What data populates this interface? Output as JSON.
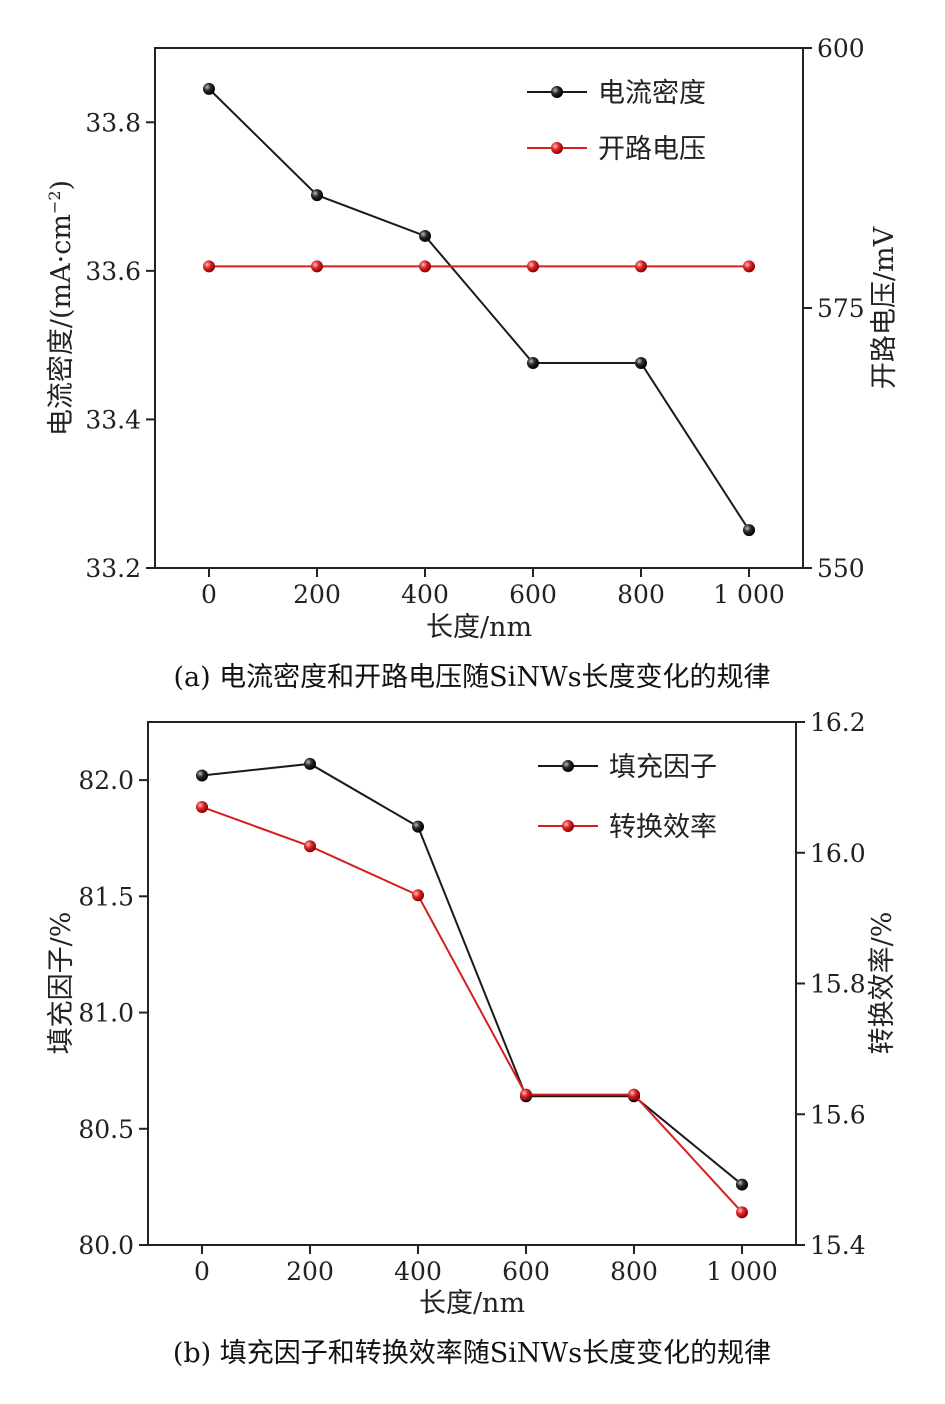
{
  "colors": {
    "series_black": "#1a1a1a",
    "series_red": "#d42020",
    "axis": "#222222"
  },
  "chart_data": [
    {
      "type": "line",
      "caption": "(a) 电流密度和开路电压随SiNWs长度变化的规律",
      "xlabel": "长度/nm",
      "ylabel": "电流密度/(mA·cm",
      "ylabel_sup": "−2",
      "ylabel_close": ")",
      "y2label": "开路电压/mV",
      "x": [
        0,
        200,
        400,
        600,
        800,
        1000
      ],
      "x_tick_labels": [
        "0",
        "200",
        "400",
        "600",
        "800",
        "1 000"
      ],
      "xlim": [
        -100,
        1100
      ],
      "ylim": [
        33.2,
        33.9
      ],
      "yticks": [
        33.2,
        33.4,
        33.6,
        33.8
      ],
      "y_tick_labels": [
        "33.2",
        "33.4",
        "33.6",
        "33.8"
      ],
      "y2lim": [
        550,
        600
      ],
      "y2ticks": [
        550,
        575,
        600
      ],
      "y2_tick_labels": [
        "550",
        "575",
        "600"
      ],
      "legend_position": "top-right",
      "series": [
        {
          "name": "电流密度",
          "axis": "left",
          "color": "#1a1a1a",
          "values": [
            33.845,
            33.702,
            33.647,
            33.476,
            33.476,
            33.251
          ]
        },
        {
          "name": "开路电压",
          "axis": "right",
          "color": "#d42020",
          "values": [
            579,
            579,
            579,
            579,
            579,
            579
          ]
        }
      ]
    },
    {
      "type": "line",
      "caption": "(b) 填充因子和转换效率随SiNWs长度变化的规律",
      "xlabel": "长度/nm",
      "ylabel": "填充因子/%",
      "y2label": "转换效率/%",
      "x": [
        0,
        200,
        400,
        600,
        800,
        1000
      ],
      "x_tick_labels": [
        "0",
        "200",
        "400",
        "600",
        "800",
        "1 000"
      ],
      "xlim": [
        -100,
        1100
      ],
      "ylim": [
        80.0,
        82.25
      ],
      "yticks": [
        80.0,
        80.5,
        81.0,
        81.5,
        82.0
      ],
      "y_tick_labels": [
        "80.0",
        "80.5",
        "81.0",
        "81.5",
        "82.0"
      ],
      "y2lim": [
        15.4,
        16.2
      ],
      "y2ticks": [
        15.4,
        15.6,
        15.8,
        16.0,
        16.2
      ],
      "y2_tick_labels": [
        "15.4",
        "15.6",
        "15.8",
        "16.0",
        "16.2"
      ],
      "legend_position": "top-right",
      "series": [
        {
          "name": "填充因子",
          "axis": "left",
          "color": "#1a1a1a",
          "values": [
            82.02,
            82.07,
            81.8,
            80.64,
            80.64,
            80.26
          ]
        },
        {
          "name": "转换效率",
          "axis": "right",
          "color": "#d42020",
          "values": [
            16.07,
            16.01,
            15.935,
            15.63,
            15.63,
            15.45
          ]
        }
      ]
    }
  ]
}
